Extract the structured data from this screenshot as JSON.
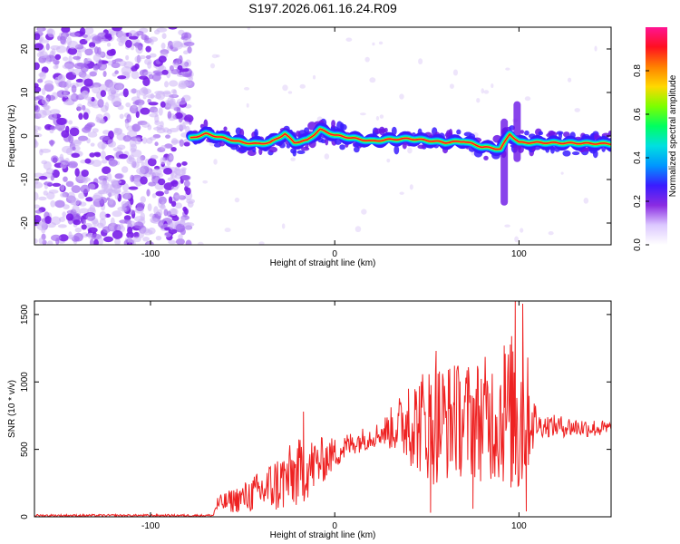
{
  "figure_title": "S197.2026.061.16.24.R09",
  "chart_data": [
    {
      "type": "heatmap",
      "title": "S197.2026.061.16.24.R09",
      "xlabel": "Height of straight line (km)",
      "ylabel": "Frequency (Hz)",
      "xlim": [
        -163,
        150
      ],
      "ylim": [
        -25,
        25
      ],
      "xticks": [
        -100,
        0,
        100
      ],
      "yticks": [
        -20,
        -10,
        0,
        10,
        20
      ],
      "colorbar": {
        "label": "Normalized spectral amplitude",
        "range": [
          0,
          1
        ],
        "ticks": [
          "0.0",
          "0.2",
          "0.4",
          "0.6",
          "0.8"
        ],
        "tick_values": [
          0.0,
          0.2,
          0.4,
          0.6,
          0.8
        ],
        "colors": [
          "#ffffff",
          "#dcc8ff",
          "#8a2be2",
          "#3a1cff",
          "#0096ff",
          "#00e0e0",
          "#00ff60",
          "#7cff00",
          "#ffd800",
          "#ff8000",
          "#ff1020",
          "#ff1493"
        ]
      },
      "noise_region": {
        "x": [
          -163,
          -78
        ],
        "amplitude": 0.25
      },
      "frequency_track": [
        {
          "x": -78,
          "f": -0.5
        },
        {
          "x": -70,
          "f": 0.5
        },
        {
          "x": -60,
          "f": -0.5
        },
        {
          "x": -50,
          "f": -1.5
        },
        {
          "x": -42,
          "f": -1.8
        },
        {
          "x": -35,
          "f": -1.5
        },
        {
          "x": -27,
          "f": 0.5
        },
        {
          "x": -22,
          "f": -1.5
        },
        {
          "x": -15,
          "f": -1.0
        },
        {
          "x": -8,
          "f": 1.5
        },
        {
          "x": 0,
          "f": 0.2
        },
        {
          "x": 10,
          "f": -0.5
        },
        {
          "x": 20,
          "f": -1.2
        },
        {
          "x": 30,
          "f": -0.8
        },
        {
          "x": 40,
          "f": -0.6
        },
        {
          "x": 50,
          "f": -1.0
        },
        {
          "x": 60,
          "f": -1.5
        },
        {
          "x": 70,
          "f": -1.2
        },
        {
          "x": 80,
          "f": -2.5
        },
        {
          "x": 90,
          "f": -3.0
        },
        {
          "x": 95,
          "f": 0.5
        },
        {
          "x": 100,
          "f": -1.5
        },
        {
          "x": 108,
          "f": -1.5
        },
        {
          "x": 150,
          "f": -1.8
        }
      ]
    },
    {
      "type": "line",
      "xlabel": "Height of straight line (km)",
      "ylabel": "SNR (10 * v/v)",
      "xlim": [
        -163,
        150
      ],
      "ylim": [
        0,
        1600
      ],
      "xticks": [
        -100,
        0,
        100
      ],
      "yticks": [
        0,
        500,
        1000,
        1500
      ],
      "series": [
        {
          "name": "SNR",
          "color": "#ee2222",
          "envelope": [
            {
              "x": -163,
              "base": 10,
              "amp": 8
            },
            {
              "x": -66,
              "base": 10,
              "amp": 8
            },
            {
              "x": -64,
              "base": 90,
              "amp": 60
            },
            {
              "x": -50,
              "base": 140,
              "amp": 110
            },
            {
              "x": -40,
              "base": 190,
              "amp": 160
            },
            {
              "x": -30,
              "base": 250,
              "amp": 230
            },
            {
              "x": -20,
              "base": 320,
              "amp": 260
            },
            {
              "x": -10,
              "base": 390,
              "amp": 200
            },
            {
              "x": 0,
              "base": 470,
              "amp": 120
            },
            {
              "x": 10,
              "base": 550,
              "amp": 90
            },
            {
              "x": 25,
              "base": 620,
              "amp": 90
            },
            {
              "x": 35,
              "base": 680,
              "amp": 220
            },
            {
              "x": 45,
              "base": 700,
              "amp": 380
            },
            {
              "x": 55,
              "base": 700,
              "amp": 480
            },
            {
              "x": 65,
              "base": 720,
              "amp": 420
            },
            {
              "x": 75,
              "base": 720,
              "amp": 450
            },
            {
              "x": 85,
              "base": 730,
              "amp": 480
            },
            {
              "x": 95,
              "base": 760,
              "amp": 560
            },
            {
              "x": 100,
              "base": 780,
              "amp": 800
            },
            {
              "x": 105,
              "base": 760,
              "amp": 420
            },
            {
              "x": 110,
              "base": 680,
              "amp": 90
            },
            {
              "x": 150,
              "base": 650,
              "amp": 60
            }
          ],
          "peak_points": [
            {
              "x": -17,
              "y": 780
            },
            {
              "x": 40,
              "y": 950
            },
            {
              "x": 52,
              "y": 30
            },
            {
              "x": 55,
              "y": 1230
            },
            {
              "x": 65,
              "y": 1120
            },
            {
              "x": 75,
              "y": 60
            },
            {
              "x": 92,
              "y": 1270
            },
            {
              "x": 98,
              "y": 1600
            },
            {
              "x": 102,
              "y": 1580
            },
            {
              "x": 104,
              "y": 40
            }
          ]
        }
      ]
    }
  ]
}
